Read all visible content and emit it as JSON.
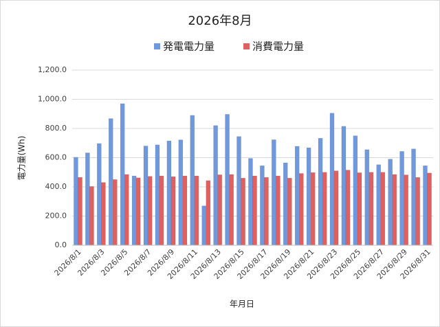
{
  "chart_data": {
    "type": "bar",
    "title": "2026年8月",
    "x_label": "年月日",
    "y_label": "電力量(Wh)",
    "categories": [
      "2026/8/1",
      null,
      "2026/8/3",
      null,
      "2026/8/5",
      null,
      "2026/8/7",
      null,
      "2026/8/9",
      null,
      "2026/8/11",
      null,
      "2026/8/13",
      null,
      "2026/8/15",
      null,
      "2026/8/17",
      null,
      "2026/8/19",
      null,
      "2026/8/21",
      null,
      "2026/8/23",
      null,
      "2026/8/25",
      null,
      "2026/8/27",
      null,
      "2026/8/29",
      null,
      "2026/8/31"
    ],
    "series": [
      {
        "name": "発電電力量",
        "color": "#7098dc",
        "values": [
          603,
          633,
          697,
          868,
          970,
          475,
          680,
          688,
          715,
          722,
          890,
          270,
          820,
          897,
          745,
          595,
          545,
          723,
          565,
          678,
          668,
          733,
          905,
          815,
          750,
          655,
          552,
          590,
          643,
          660,
          545
        ]
      },
      {
        "name": "消費電力量",
        "color": "#e06060",
        "values": [
          465,
          403,
          430,
          450,
          485,
          462,
          472,
          475,
          470,
          475,
          475,
          443,
          483,
          485,
          460,
          475,
          465,
          475,
          460,
          492,
          498,
          500,
          510,
          515,
          497,
          500,
          500,
          485,
          482,
          465,
          495
        ]
      }
    ],
    "ylim": [
      0,
      1200
    ],
    "yticks": [
      {
        "value": 0,
        "label": "0.0"
      },
      {
        "value": 200,
        "label": "200.0"
      },
      {
        "value": 400,
        "label": "400.0"
      },
      {
        "value": 600,
        "label": "600.0"
      },
      {
        "value": 800,
        "label": "800.0"
      },
      {
        "value": 1000,
        "label": "1,000.0"
      },
      {
        "value": 1200,
        "label": "1,200.0"
      }
    ],
    "grid": true,
    "legend": "top"
  }
}
